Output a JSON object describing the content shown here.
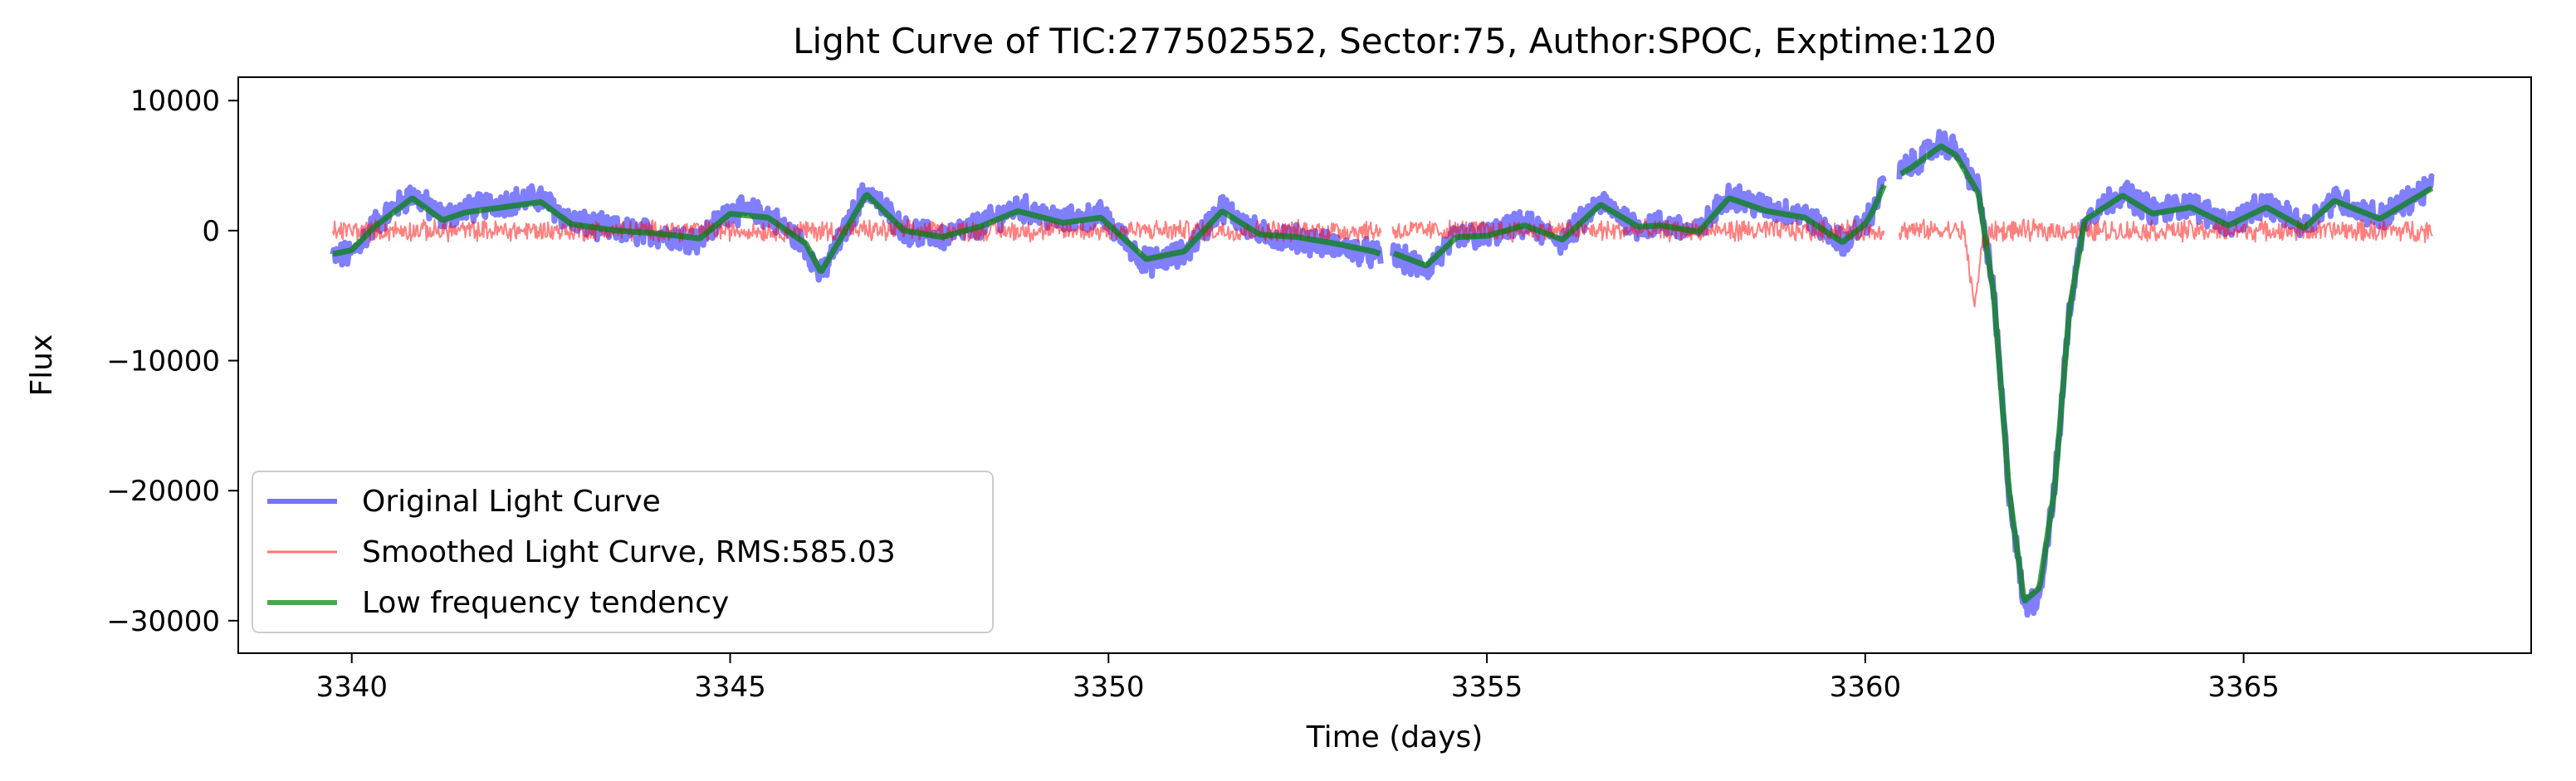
{
  "chart_data": {
    "type": "line",
    "title": "Light Curve of TIC:277502552, Sector:75, Author:SPOC, Exptime:120",
    "xlabel": "Time (days)",
    "ylabel": "Flux",
    "xlim": [
      3338.5,
      3368.8
    ],
    "ylim": [
      -32500,
      11800
    ],
    "xticks": [
      3340,
      3345,
      3350,
      3355,
      3360,
      3365
    ],
    "yticks": [
      10000,
      0,
      -10000,
      -20000,
      -30000
    ],
    "ytick_labels": [
      "10000",
      "0",
      "−10000",
      "−20000",
      "−30000"
    ],
    "grid": false,
    "legend_position": "lower-left",
    "gaps": [
      [
        3353.6,
        3353.75
      ],
      [
        3360.25,
        3360.45
      ]
    ],
    "series": [
      {
        "name": "Original Light Curve",
        "color": "#0000ff",
        "opacity": 0.5,
        "style": "thick",
        "noise": 900,
        "x": [
          3339.75,
          3340.0,
          3340.3,
          3340.8,
          3341.2,
          3341.5,
          3342.0,
          3342.5,
          3342.9,
          3343.5,
          3344.0,
          3344.6,
          3345.0,
          3345.5,
          3346.0,
          3346.2,
          3346.8,
          3347.3,
          3347.8,
          3348.3,
          3348.8,
          3349.4,
          3349.9,
          3350.5,
          3351.0,
          3351.5,
          3352.0,
          3352.5,
          3353.0,
          3353.5,
          3353.6,
          3353.75,
          3354.2,
          3354.6,
          3355.0,
          3355.5,
          3356.0,
          3356.5,
          3357.0,
          3357.3,
          3357.8,
          3358.2,
          3358.7,
          3359.2,
          3359.7,
          3360.0,
          3360.1,
          3360.25,
          3360.45,
          3360.6,
          3361.0,
          3361.2,
          3361.5,
          3361.7,
          3361.9,
          3362.1,
          3362.3,
          3362.5,
          3362.7,
          3362.9,
          3363.4,
          3363.8,
          3364.3,
          3364.8,
          3365.3,
          3365.8,
          3366.2,
          3366.8,
          3367.5
        ],
        "y": [
          -2000,
          -1800,
          500,
          2800,
          1000,
          1600,
          2200,
          2500,
          700,
          0,
          -200,
          -700,
          1600,
          1200,
          -1200,
          -3500,
          3200,
          0,
          -500,
          400,
          1800,
          700,
          1200,
          -2500,
          -1800,
          1800,
          -300,
          -600,
          -1200,
          -1800,
          -2000,
          -1900,
          -3000,
          -500,
          -400,
          500,
          -800,
          2200,
          300,
          500,
          -100,
          2800,
          1700,
          1200,
          -1000,
          600,
          1500,
          3800,
          4600,
          5000,
          6800,
          6200,
          3000,
          -5000,
          -20000,
          -29000,
          -28000,
          -20000,
          -6000,
          1000,
          3000,
          1500,
          2000,
          500,
          2000,
          300,
          2500,
          1000,
          3500
        ]
      },
      {
        "name": "Smoothed Light Curve, RMS:585.03",
        "color": "#ff0000",
        "opacity": 0.5,
        "style": "thin",
        "noise": 700,
        "x": [
          3339.75,
          3346.0,
          3353.6,
          3353.75,
          3360.25,
          3360.45,
          3361.3,
          3361.45,
          3361.55,
          3361.7,
          3367.5
        ],
        "y": [
          0,
          0,
          0,
          0,
          0,
          0,
          0,
          -5800,
          -1000,
          0,
          0
        ]
      },
      {
        "name": "Low frequency tendency",
        "color": "#008000",
        "opacity": 0.7,
        "style": "thick",
        "noise": 0,
        "x": [
          3339.75,
          3340.0,
          3340.3,
          3340.8,
          3341.2,
          3341.5,
          3342.0,
          3342.5,
          3342.9,
          3343.5,
          3344.0,
          3344.6,
          3345.0,
          3345.5,
          3346.0,
          3346.2,
          3346.8,
          3347.3,
          3347.8,
          3348.3,
          3348.8,
          3349.4,
          3349.9,
          3350.5,
          3351.0,
          3351.5,
          3352.0,
          3352.5,
          3353.0,
          3353.5,
          3353.6,
          3353.75,
          3354.2,
          3354.6,
          3355.0,
          3355.5,
          3356.0,
          3356.5,
          3357.0,
          3357.3,
          3357.8,
          3358.2,
          3358.7,
          3359.2,
          3359.7,
          3360.0,
          3360.1,
          3360.25,
          3360.45,
          3360.6,
          3361.0,
          3361.2,
          3361.5,
          3361.7,
          3361.9,
          3362.1,
          3362.3,
          3362.5,
          3362.7,
          3362.9,
          3363.4,
          3363.8,
          3364.3,
          3364.8,
          3365.3,
          3365.8,
          3366.2,
          3366.8,
          3367.5
        ],
        "y": [
          -1800,
          -1500,
          300,
          2500,
          800,
          1400,
          1800,
          2200,
          500,
          0,
          -200,
          -600,
          1300,
          1000,
          -1000,
          -3200,
          2800,
          0,
          -500,
          300,
          1500,
          600,
          1000,
          -2200,
          -1600,
          1500,
          -300,
          -500,
          -1000,
          -1600,
          -1800,
          -1700,
          -2700,
          -500,
          -400,
          400,
          -700,
          2000,
          300,
          400,
          -100,
          2500,
          1500,
          1000,
          -900,
          500,
          1500,
          3500,
          4300,
          4800,
          6500,
          5800,
          2800,
          -5000,
          -20000,
          -28500,
          -27500,
          -20000,
          -6000,
          800,
          2700,
          1300,
          1800,
          400,
          1800,
          200,
          2300,
          900,
          3300
        ]
      }
    ],
    "legend": [
      "Original Light Curve",
      "Smoothed Light Curve, RMS:585.03",
      "Low frequency tendency"
    ]
  }
}
